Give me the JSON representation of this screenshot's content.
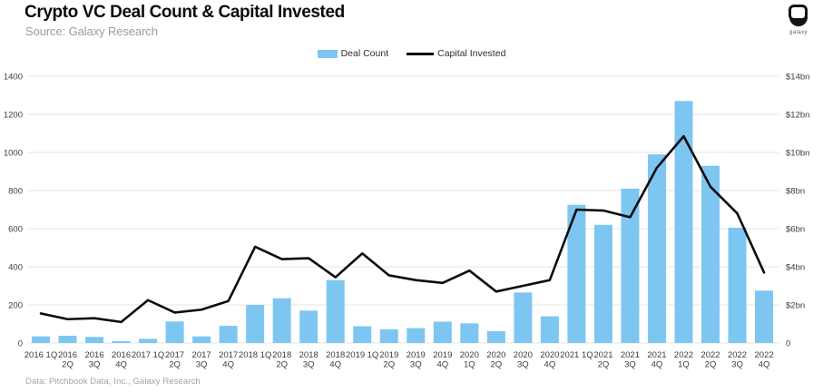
{
  "header": {
    "title": "Crypto VC Deal Count & Capital Invested",
    "subtitle": "Source: Galaxy Research",
    "logo_text": "galaxy"
  },
  "legend": [
    {
      "label": "Deal Count",
      "swatch": "bar",
      "color": "#7ec6f2"
    },
    {
      "label": "Capital Invested",
      "swatch": "line",
      "color": "#0d0d0d"
    }
  ],
  "footer": {
    "note": "Data: Pitchbook Data, Inc., Galaxy Research"
  },
  "chart_data": {
    "type": "bar",
    "subtype": "bar+line combo, dual axis",
    "title": "Crypto VC Deal Count & Capital Invested",
    "categories": [
      "2016 1Q",
      "2016\n2Q",
      "2016\n3Q",
      "2016\n4Q",
      "2017 1Q",
      "2017\n2Q",
      "2017\n3Q",
      "2017\n4Q",
      "2018 1Q",
      "2018\n2Q",
      "2018\n3Q",
      "2018\n4Q",
      "2019 1Q",
      "2019\n2Q",
      "2019\n3Q",
      "2019\n4Q",
      "2020\n1Q",
      "2020\n2Q",
      "2020\n3Q",
      "2020\n4Q",
      "2021 1Q",
      "2021\n2Q",
      "2021\n3Q",
      "2021\n4Q",
      "2022\n1Q",
      "2022\n2Q",
      "2022\n3Q",
      "2022\n4Q"
    ],
    "series": [
      {
        "name": "Deal Count",
        "type": "bar",
        "axis": "left",
        "color": "#7ec6f2",
        "values": [
          35,
          38,
          32,
          10,
          22,
          113,
          35,
          90,
          200,
          235,
          170,
          330,
          88,
          72,
          78,
          112,
          103,
          62,
          265,
          140,
          725,
          620,
          810,
          990,
          1270,
          930,
          605,
          275
        ]
      },
      {
        "name": "Capital Invested",
        "type": "line",
        "axis": "right",
        "color": "#0d0d0d",
        "values_bn": [
          1.55,
          1.25,
          1.3,
          1.1,
          2.25,
          1.6,
          1.75,
          2.2,
          5.05,
          4.4,
          4.45,
          3.45,
          4.7,
          3.55,
          3.3,
          3.15,
          3.8,
          2.7,
          3.0,
          3.3,
          7.0,
          6.95,
          6.6,
          9.2,
          10.85,
          8.2,
          6.8,
          3.7
        ]
      }
    ],
    "left_axis": {
      "ticks": [
        "0",
        "200",
        "400",
        "600",
        "800",
        "1000",
        "1200",
        "1400"
      ],
      "min": 0,
      "max": 1400
    },
    "right_axis": {
      "ticks": [
        "0",
        "$2bn",
        "$4bn",
        "$6bn",
        "$8bn",
        "$10bn",
        "$12bn",
        "$14bn"
      ],
      "min": 0,
      "max_bn": 14
    },
    "grid": true,
    "legend_position": "top-center"
  }
}
